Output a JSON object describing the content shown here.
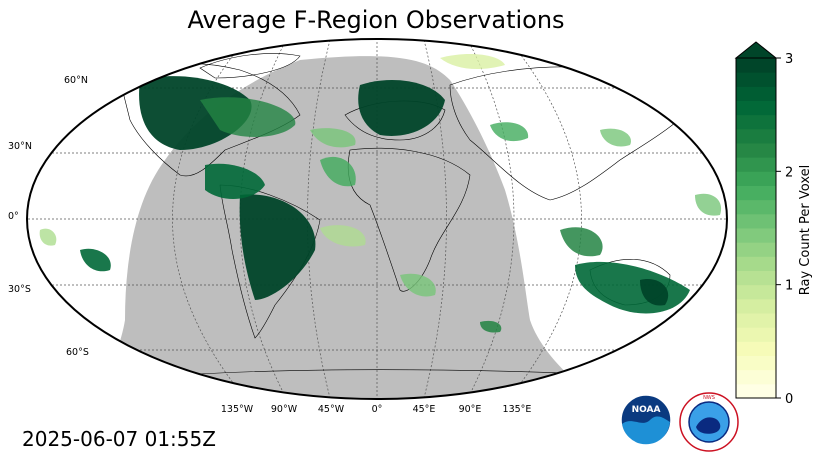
{
  "title": "Average F-Region Observations",
  "timestamp": "2025-06-07 01:55Z",
  "colorbar": {
    "label": "Ray Count Per Voxel",
    "ticks": [
      "0",
      "1",
      "2",
      "3"
    ],
    "min": 0,
    "max": 3,
    "extend": "max",
    "colors": [
      "#ffffe5",
      "#f7fcb9",
      "#d9f0a3",
      "#addd8e",
      "#78c679",
      "#41ab5d",
      "#238443",
      "#006837",
      "#004529"
    ]
  },
  "map": {
    "projection": "Robinson",
    "lat_labels": [
      "60°N",
      "30°N",
      "0°",
      "30°S",
      "60°S"
    ],
    "lon_labels": [
      "135°W",
      "90°W",
      "45°W",
      "0°",
      "45°E",
      "90°E",
      "135°E"
    ],
    "night_shade_color": "#bebebe",
    "coastline_color": "#000000"
  },
  "logos": {
    "noaa": "NOAA",
    "nws": "NATIONAL WEATHER SERVICE"
  }
}
